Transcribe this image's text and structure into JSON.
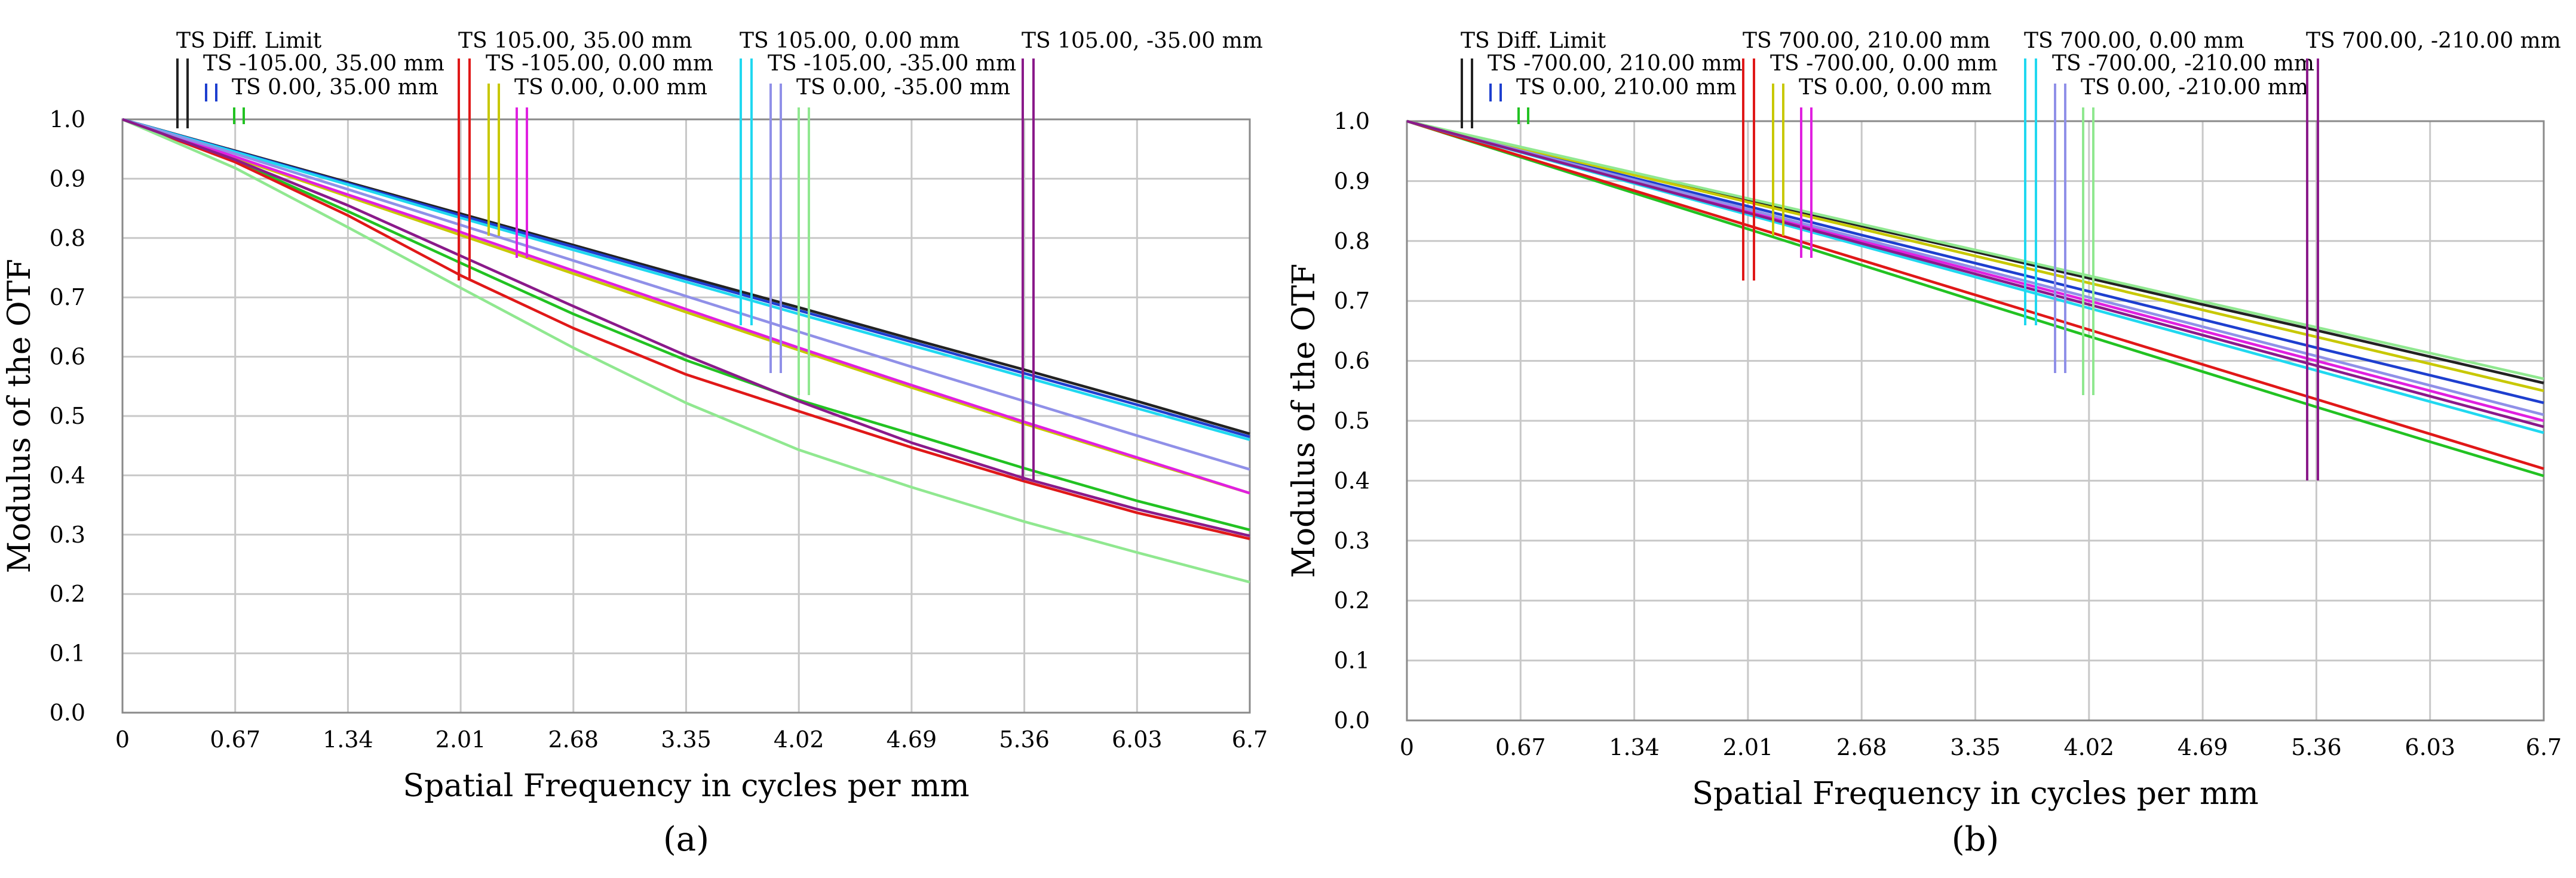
{
  "chart_data": [
    {
      "type": "line",
      "panel_label": "(a)",
      "xlabel": "Spatial Frequency in cycles per mm",
      "ylabel": "Modulus of the OTF",
      "xlim": [
        0,
        6.7
      ],
      "ylim": [
        0,
        1.0
      ],
      "grid": true,
      "xticks": [
        0,
        0.67,
        1.34,
        2.01,
        2.68,
        3.35,
        4.02,
        4.69,
        5.36,
        6.03,
        6.7
      ],
      "xtick_labels": [
        "0",
        "0.67",
        "1.34",
        "2.01",
        "2.68",
        "3.35",
        "4.02",
        "4.69",
        "5.36",
        "6.03",
        "6.7"
      ],
      "yticks": [
        0,
        0.1,
        0.2,
        0.3,
        0.4,
        0.5,
        0.6,
        0.7,
        0.8,
        0.9,
        1.0
      ],
      "ytick_labels": [
        "0.0",
        "0.1",
        "0.2",
        "0.3",
        "0.4",
        "0.5",
        "0.6",
        "0.7",
        "0.8",
        "0.9",
        "1.0"
      ],
      "series": [
        {
          "name": "TS Diff. Limit",
          "color": "#222222",
          "x": [
            0,
            0.67,
            1.34,
            2.01,
            2.68,
            3.35,
            4.02,
            4.69,
            5.36,
            6.03,
            6.7
          ],
          "values": [
            1.0,
            0.947,
            0.894,
            0.841,
            0.788,
            0.735,
            0.683,
            0.63,
            0.578,
            0.525,
            0.47
          ]
        },
        {
          "name": "TS -105.00, 35.00 mm",
          "color": "#1e3fcf",
          "x": [
            0,
            0.67,
            1.34,
            2.01,
            2.68,
            3.35,
            4.02,
            4.69,
            5.36,
            6.03,
            6.7
          ],
          "values": [
            1.0,
            0.946,
            0.892,
            0.838,
            0.785,
            0.731,
            0.678,
            0.625,
            0.572,
            0.519,
            0.465
          ]
        },
        {
          "name": "TS 0.00, 35.00 mm",
          "color": "#22c222",
          "x": [
            0,
            0.67,
            1.34,
            2.01,
            2.68,
            3.35,
            4.02,
            4.69,
            5.36,
            6.03,
            6.7
          ],
          "values": [
            1.0,
            0.93,
            0.845,
            0.758,
            0.672,
            0.594,
            0.527,
            0.47,
            0.412,
            0.357,
            0.308
          ]
        },
        {
          "name": "TS 105.00, 35.00 mm",
          "color": "#e01818",
          "x": [
            0,
            0.67,
            1.34,
            2.01,
            2.68,
            3.35,
            4.02,
            4.69,
            5.36,
            6.03,
            6.7
          ],
          "values": [
            1.0,
            0.928,
            0.838,
            0.737,
            0.648,
            0.57,
            0.508,
            0.447,
            0.39,
            0.337,
            0.293
          ]
        },
        {
          "name": "TS -105.00, 0.00 mm",
          "color": "#c8c800",
          "x": [
            0,
            0.67,
            1.34,
            2.01,
            2.68,
            3.35,
            4.02,
            4.69,
            5.36,
            6.03,
            6.7
          ],
          "values": [
            1.0,
            0.935,
            0.87,
            0.805,
            0.74,
            0.675,
            0.611,
            0.548,
            0.487,
            0.428,
            0.37
          ]
        },
        {
          "name": "TS 0.00, 0.00 mm",
          "color": "#e020e0",
          "x": [
            0,
            0.67,
            1.34,
            2.01,
            2.68,
            3.35,
            4.02,
            4.69,
            5.36,
            6.03,
            6.7
          ],
          "values": [
            1.0,
            0.937,
            0.873,
            0.81,
            0.745,
            0.68,
            0.615,
            0.552,
            0.49,
            0.43,
            0.37
          ]
        },
        {
          "name": "TS 105.00, 0.00 mm",
          "color": "#20d8f0",
          "x": [
            0,
            0.67,
            1.34,
            2.01,
            2.68,
            3.35,
            4.02,
            4.69,
            5.36,
            6.03,
            6.7
          ],
          "values": [
            1.0,
            0.945,
            0.89,
            0.834,
            0.78,
            0.726,
            0.672,
            0.619,
            0.566,
            0.513,
            0.46
          ]
        },
        {
          "name": "TS -105.00, -35.00 mm",
          "color": "#9090e8",
          "x": [
            0,
            0.67,
            1.34,
            2.01,
            2.68,
            3.35,
            4.02,
            4.69,
            5.36,
            6.03,
            6.7
          ],
          "values": [
            1.0,
            0.942,
            0.882,
            0.822,
            0.762,
            0.702,
            0.642,
            0.583,
            0.525,
            0.467,
            0.41
          ]
        },
        {
          "name": "TS 0.00, -35.00 mm",
          "color": "#90e890",
          "x": [
            0,
            0.67,
            1.34,
            2.01,
            2.68,
            3.35,
            4.02,
            4.69,
            5.36,
            6.03,
            6.7
          ],
          "values": [
            1.0,
            0.918,
            0.818,
            0.716,
            0.615,
            0.522,
            0.443,
            0.38,
            0.322,
            0.27,
            0.22
          ]
        },
        {
          "name": "TS 105.00, -35.00 mm",
          "color": "#8a1a8a",
          "x": [
            0,
            0.67,
            1.34,
            2.01,
            2.68,
            3.35,
            4.02,
            4.69,
            5.36,
            6.03,
            6.7
          ],
          "values": [
            1.0,
            0.932,
            0.855,
            0.77,
            0.685,
            0.602,
            0.525,
            0.455,
            0.395,
            0.343,
            0.298
          ]
        }
      ]
    },
    {
      "type": "line",
      "panel_label": "(b)",
      "xlabel": "Spatial Frequency in cycles per mm",
      "ylabel": "Modulus of the OTF",
      "xlim": [
        0,
        6.7
      ],
      "ylim": [
        0,
        1.0
      ],
      "grid": true,
      "xticks": [
        0,
        0.67,
        1.34,
        2.01,
        2.68,
        3.35,
        4.02,
        4.69,
        5.36,
        6.03,
        6.7
      ],
      "xtick_labels": [
        "0",
        "0.67",
        "1.34",
        "2.01",
        "2.68",
        "3.35",
        "4.02",
        "4.69",
        "5.36",
        "6.03",
        "6.7"
      ],
      "yticks": [
        0,
        0.1,
        0.2,
        0.3,
        0.4,
        0.5,
        0.6,
        0.7,
        0.8,
        0.9,
        1.0
      ],
      "ytick_labels": [
        "0.0",
        "0.1",
        "0.2",
        "0.3",
        "0.4",
        "0.5",
        "0.6",
        "0.7",
        "0.8",
        "0.9",
        "1.0"
      ],
      "series": [
        {
          "name": "TS Diff. Limit",
          "color": "#222222",
          "x": [
            0,
            0.67,
            1.34,
            2.01,
            2.68,
            3.35,
            4.02,
            4.69,
            5.36,
            6.03,
            6.7
          ],
          "values": [
            1.0,
            0.956,
            0.913,
            0.869,
            0.825,
            0.782,
            0.738,
            0.694,
            0.651,
            0.607,
            0.563
          ]
        },
        {
          "name": "TS -700.00, 210.00 mm",
          "color": "#1e3fcf",
          "x": [
            0,
            0.67,
            1.34,
            2.01,
            2.68,
            3.35,
            4.02,
            4.69,
            5.36,
            6.03,
            6.7
          ],
          "values": [
            1.0,
            0.953,
            0.905,
            0.858,
            0.81,
            0.763,
            0.716,
            0.669,
            0.622,
            0.576,
            0.53
          ]
        },
        {
          "name": "TS 0.00, 210.00 mm",
          "color": "#22c222",
          "x": [
            0,
            0.67,
            1.34,
            2.01,
            2.68,
            3.35,
            4.02,
            4.69,
            5.36,
            6.03,
            6.7
          ],
          "values": [
            1.0,
            0.94,
            0.88,
            0.82,
            0.76,
            0.7,
            0.641,
            0.582,
            0.523,
            0.465,
            0.408
          ]
        },
        {
          "name": "TS 700.00, 210.00 mm",
          "color": "#e01818",
          "x": [
            0,
            0.67,
            1.34,
            2.01,
            2.68,
            3.35,
            4.02,
            4.69,
            5.36,
            6.03,
            6.7
          ],
          "values": [
            1.0,
            0.942,
            0.884,
            0.826,
            0.768,
            0.71,
            0.652,
            0.594,
            0.536,
            0.478,
            0.42
          ]
        },
        {
          "name": "TS -700.00, 0.00 mm",
          "color": "#c8c800",
          "x": [
            0,
            0.67,
            1.34,
            2.01,
            2.68,
            3.35,
            4.02,
            4.69,
            5.36,
            6.03,
            6.7
          ],
          "values": [
            1.0,
            0.955,
            0.91,
            0.865,
            0.82,
            0.775,
            0.73,
            0.685,
            0.64,
            0.595,
            0.55
          ]
        },
        {
          "name": "TS 0.00, 0.00 mm",
          "color": "#e020e0",
          "x": [
            0,
            0.67,
            1.34,
            2.01,
            2.68,
            3.35,
            4.02,
            4.69,
            5.36,
            6.03,
            6.7
          ],
          "values": [
            1.0,
            0.95,
            0.9,
            0.85,
            0.8,
            0.75,
            0.7,
            0.65,
            0.6,
            0.55,
            0.5
          ]
        },
        {
          "name": "TS 700.00, 0.00 mm",
          "color": "#20d8f0",
          "x": [
            0,
            0.67,
            1.34,
            2.01,
            2.68,
            3.35,
            4.02,
            4.69,
            5.36,
            6.03,
            6.7
          ],
          "values": [
            1.0,
            0.948,
            0.896,
            0.844,
            0.792,
            0.74,
            0.688,
            0.636,
            0.584,
            0.532,
            0.48
          ]
        },
        {
          "name": "TS -700.00, -210.00 mm",
          "color": "#9090e8",
          "x": [
            0,
            0.67,
            1.34,
            2.01,
            2.68,
            3.35,
            4.02,
            4.69,
            5.36,
            6.03,
            6.7
          ],
          "values": [
            1.0,
            0.951,
            0.902,
            0.853,
            0.804,
            0.755,
            0.706,
            0.657,
            0.608,
            0.559,
            0.51
          ]
        },
        {
          "name": "TS 0.00, -210.00 mm",
          "color": "#90e890",
          "x": [
            0,
            0.67,
            1.34,
            2.01,
            2.68,
            3.35,
            4.02,
            4.69,
            5.36,
            6.03,
            6.7
          ],
          "values": [
            1.0,
            0.957,
            0.914,
            0.871,
            0.828,
            0.785,
            0.742,
            0.699,
            0.656,
            0.613,
            0.57
          ]
        },
        {
          "name": "TS 700.00, -210.00 mm",
          "color": "#8a1a8a",
          "x": [
            0,
            0.67,
            1.34,
            2.01,
            2.68,
            3.35,
            4.02,
            4.69,
            5.36,
            6.03,
            6.7
          ],
          "values": [
            1.0,
            0.949,
            0.898,
            0.847,
            0.796,
            0.745,
            0.694,
            0.643,
            0.592,
            0.541,
            0.49
          ]
        }
      ]
    }
  ]
}
